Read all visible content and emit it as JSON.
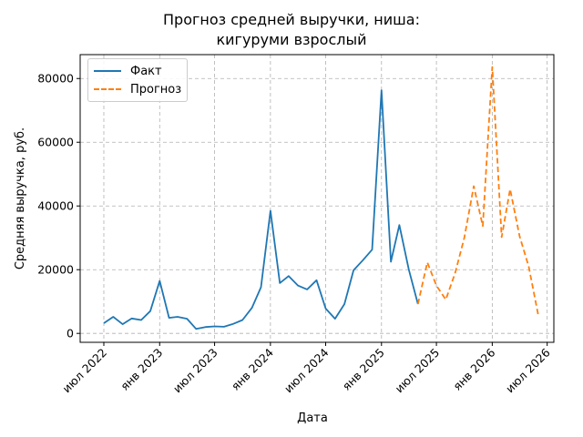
{
  "chart_data": {
    "type": "line",
    "title_lines": [
      "Прогноз средней выручки, ниша:",
      "кигуруми взрослый"
    ],
    "xlabel": "Дата",
    "ylabel": "Средняя выручка, руб.",
    "ylim": [
      -2800,
      87500
    ],
    "xlim": [
      "2022-04-14",
      "2026-07-23"
    ],
    "y_ticks": [
      0,
      20000,
      40000,
      60000,
      80000
    ],
    "x_ticks": [
      {
        "date": "2022-07-01",
        "label": "июл 2022"
      },
      {
        "date": "2023-01-01",
        "label": "янв 2023"
      },
      {
        "date": "2023-07-01",
        "label": "июл 2023"
      },
      {
        "date": "2024-01-01",
        "label": "янв 2024"
      },
      {
        "date": "2024-07-01",
        "label": "июл 2024"
      },
      {
        "date": "2025-01-01",
        "label": "янв 2025"
      },
      {
        "date": "2025-07-01",
        "label": "июл 2025"
      },
      {
        "date": "2026-01-01",
        "label": "янв 2026"
      },
      {
        "date": "2026-07-01",
        "label": "июл 2026"
      }
    ],
    "grid": true,
    "legend_position": "top-left",
    "series": [
      {
        "name": "Факт",
        "color": "#1f77b4",
        "style": "solid",
        "points": [
          [
            "2022-07-01",
            3200
          ],
          [
            "2022-08-01",
            5200
          ],
          [
            "2022-09-01",
            2900
          ],
          [
            "2022-10-01",
            4700
          ],
          [
            "2022-11-01",
            4200
          ],
          [
            "2022-12-01",
            7000
          ],
          [
            "2023-01-01",
            16500
          ],
          [
            "2023-02-01",
            4900
          ],
          [
            "2023-03-01",
            5200
          ],
          [
            "2023-04-01",
            4600
          ],
          [
            "2023-05-01",
            1400
          ],
          [
            "2023-06-01",
            2000
          ],
          [
            "2023-07-01",
            2200
          ],
          [
            "2023-08-01",
            2100
          ],
          [
            "2023-09-01",
            3000
          ],
          [
            "2023-10-01",
            4200
          ],
          [
            "2023-11-01",
            8000
          ],
          [
            "2023-12-01",
            14500
          ],
          [
            "2024-01-01",
            38500
          ],
          [
            "2024-02-01",
            15800
          ],
          [
            "2024-03-01",
            18000
          ],
          [
            "2024-04-01",
            15000
          ],
          [
            "2024-05-01",
            13800
          ],
          [
            "2024-06-01",
            16700
          ],
          [
            "2024-07-01",
            7800
          ],
          [
            "2024-08-01",
            4600
          ],
          [
            "2024-09-01",
            9200
          ],
          [
            "2024-10-01",
            19800
          ],
          [
            "2024-11-01",
            23000
          ],
          [
            "2024-12-01",
            26300
          ],
          [
            "2025-01-01",
            76300
          ],
          [
            "2025-02-01",
            22500
          ],
          [
            "2025-03-01",
            34000
          ],
          [
            "2025-04-01",
            20000
          ],
          [
            "2025-05-01",
            9200
          ]
        ]
      },
      {
        "name": "Прогноз",
        "color": "#ff7f0e",
        "style": "dashed",
        "points": [
          [
            "2025-05-01",
            9200
          ],
          [
            "2025-06-01",
            22300
          ],
          [
            "2025-07-01",
            15000
          ],
          [
            "2025-08-01",
            10600
          ],
          [
            "2025-09-01",
            19000
          ],
          [
            "2025-10-01",
            30000
          ],
          [
            "2025-11-01",
            46200
          ],
          [
            "2025-12-01",
            33700
          ],
          [
            "2026-01-01",
            83600
          ],
          [
            "2026-02-01",
            30200
          ],
          [
            "2026-03-01",
            45300
          ],
          [
            "2026-04-01",
            30500
          ],
          [
            "2026-05-01",
            21000
          ],
          [
            "2026-06-01",
            6000
          ]
        ]
      }
    ]
  }
}
